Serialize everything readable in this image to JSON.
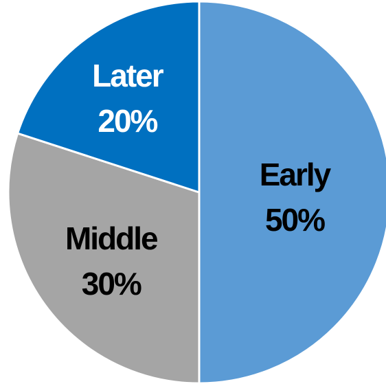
{
  "chart_data": {
    "type": "pie",
    "title": "",
    "slices": [
      {
        "label": "Early",
        "value": 50,
        "value_label": "50%",
        "color": "#5b9bd5",
        "label_color": "#000000"
      },
      {
        "label": "Middle",
        "value": 30,
        "value_label": "30%",
        "color": "#a5a5a5",
        "label_color": "#000000"
      },
      {
        "label": "Later",
        "value": 20,
        "value_label": "20%",
        "color": "#0070c0",
        "label_color": "#ffffff"
      }
    ],
    "start_angle": "12 o'clock",
    "direction": "clockwise",
    "legend": "none"
  }
}
